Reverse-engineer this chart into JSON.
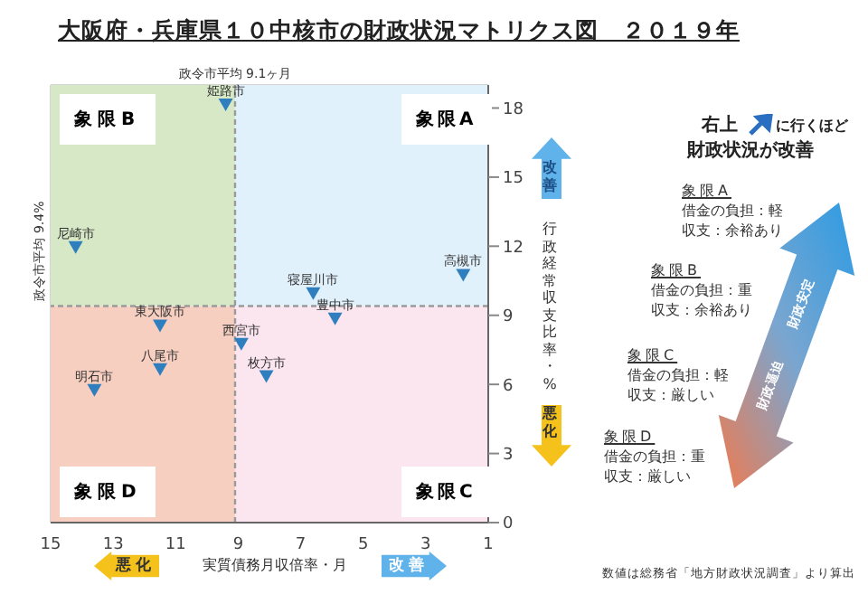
{
  "chart_data": {
    "type": "scatter",
    "title": "大阪府・兵庫県１０中核市の財政状況マトリクス図　２０１９年",
    "xlabel": "実質債務月収倍率・月",
    "ylabel": "行政経常収支比率・%",
    "x": [
      9.4,
      14.2,
      1.8,
      6.6,
      11.5,
      5.9,
      8.9,
      11.5,
      8.1,
      13.6
    ],
    "series": [
      {
        "color": "#2f7fbf",
        "values": [
          18.1,
          11.9,
          10.7,
          9.9,
          8.5,
          8.8,
          7.7,
          6.6,
          6.3,
          5.7
        ]
      }
    ],
    "xlim": [
      15,
      1
    ],
    "xticks": [
      15,
      13,
      11,
      9,
      7,
      5,
      3,
      1
    ],
    "ylim": [
      0,
      19
    ],
    "yticks": [
      0,
      3,
      6,
      9,
      12,
      15,
      18
    ],
    "grid": true,
    "marker": "triangle",
    "ref_lines": [
      {
        "axis": "x",
        "value": 9.1,
        "label": "政令市平均 9.1ヶ月",
        "color": "#9a9a9a",
        "line_style": "dashed"
      },
      {
        "axis": "y",
        "value": 9.4,
        "label": "政令市平均 9.4%",
        "color": "#9a9a9a",
        "line_style": "dashed"
      }
    ],
    "annotations": [
      {
        "text": "姫路市",
        "x": 9.4,
        "y": 18.1
      },
      {
        "text": "尼崎市",
        "x": 14.2,
        "y": 11.9
      },
      {
        "text": "高槻市",
        "x": 1.8,
        "y": 10.7
      },
      {
        "text": "寝屋川市",
        "x": 6.6,
        "y": 9.9
      },
      {
        "text": "東大阪市",
        "x": 11.5,
        "y": 8.5
      },
      {
        "text": "豊中市",
        "x": 5.9,
        "y": 8.8
      },
      {
        "text": "西宮市",
        "x": 8.9,
        "y": 7.7
      },
      {
        "text": "八尾市",
        "x": 11.5,
        "y": 6.6
      },
      {
        "text": "枚方市",
        "x": 8.1,
        "y": 6.3
      },
      {
        "text": "明石市",
        "x": 13.6,
        "y": 5.7
      },
      "象限A",
      "象限B",
      "象限C",
      "象限D",
      "改善",
      "悪化",
      "悪化",
      "改善",
      "右上",
      "に行くほど",
      "財政状況が改善",
      "象限A",
      "借金の負担：軽",
      "収支：余裕あり",
      "象限B",
      "借金の負担：重",
      "収支：余裕あり",
      "象限C",
      "借金の負担：軽",
      "収支：厳しい",
      "象限D",
      "借金の負担：重",
      "収支：厳しい",
      "財政安定",
      "財政逼迫",
      "数値は総務省「地方財政状況調査」より算出"
    ]
  }
}
